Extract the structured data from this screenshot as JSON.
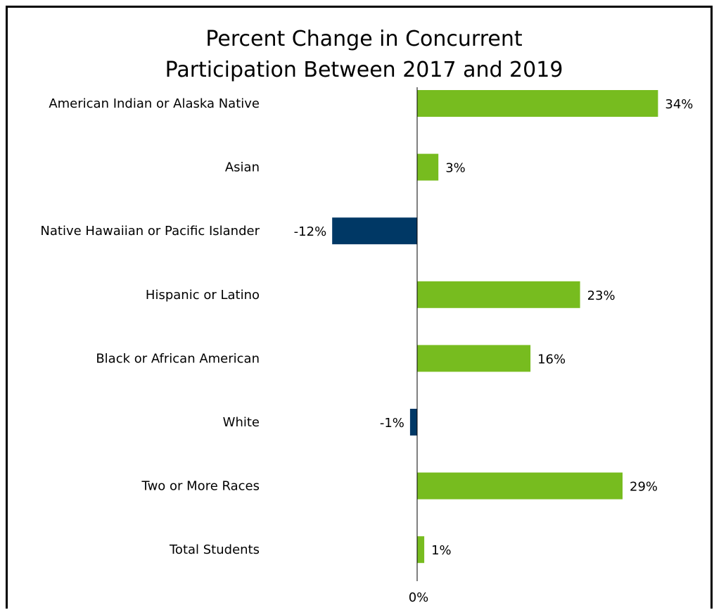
{
  "chart_data": {
    "type": "bar",
    "orientation": "horizontal",
    "title": [
      "Percent Change in Concurrent",
      "Participation Between 2017 and 2019"
    ],
    "categories": [
      "American Indian or Alaska Native",
      "Asian",
      "Native Hawaiian or Pacific Islander",
      "Hispanic or Latino",
      "Black or African American",
      "White",
      "Two or More Races",
      "Total Students"
    ],
    "values": [
      34,
      3,
      -12,
      23,
      16,
      -1,
      29,
      1
    ],
    "data_labels": [
      "34%",
      "3%",
      "-12%",
      "23%",
      "16%",
      "-1%",
      "29%",
      "1%"
    ],
    "axis_tick_label": "0%",
    "colors": {
      "positive": "#77bc1f",
      "negative": "#003865"
    },
    "legend": "none",
    "grid": false
  }
}
